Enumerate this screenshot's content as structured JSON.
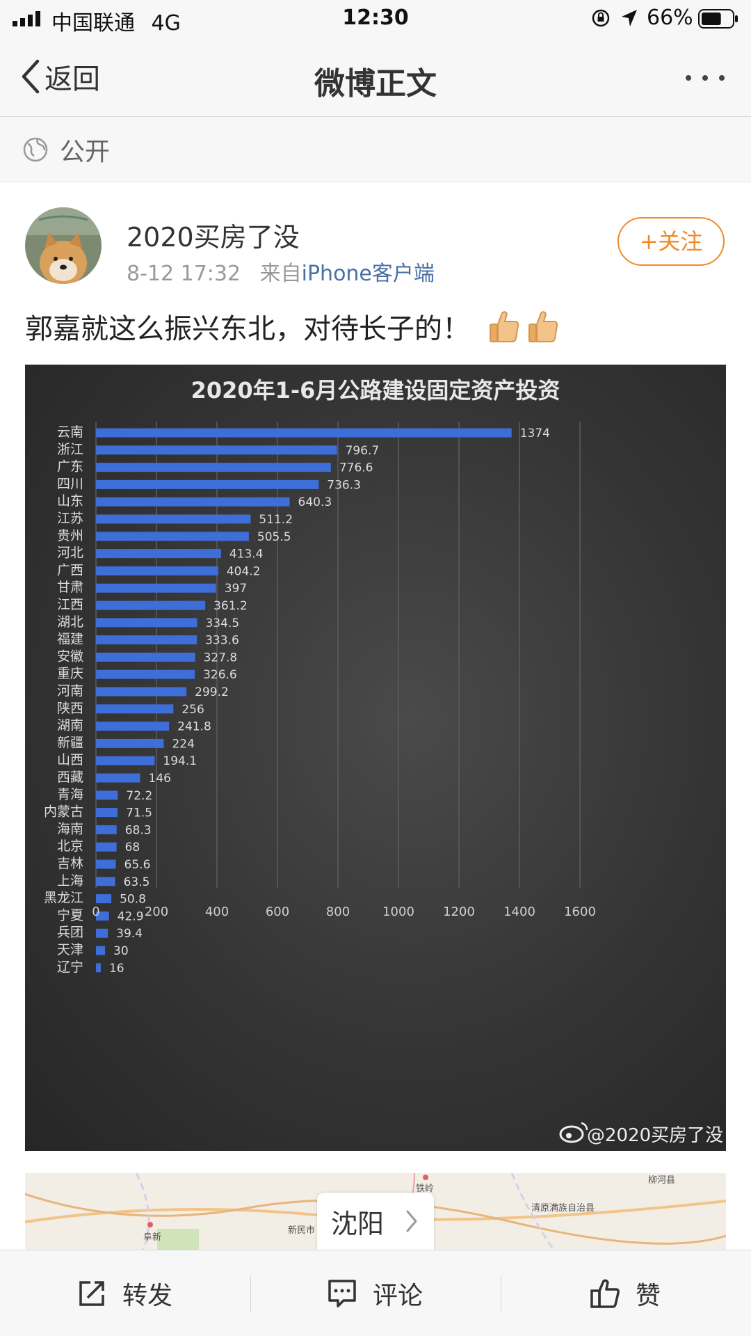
{
  "status_bar": {
    "carrier": "中国联通",
    "network": "4G",
    "time": "12:30",
    "battery_percent": "66%",
    "battery_level": 0.66
  },
  "nav": {
    "back_label": "返回",
    "title": "微博正文",
    "more_icon": "more-dots-icon"
  },
  "visibility": {
    "icon": "globe-icon",
    "label": "公开"
  },
  "post": {
    "username": "2020买房了没",
    "time": "8-12 17:32",
    "source_prefix": "来自",
    "source": "iPhone客户端",
    "follow_label": "+关注",
    "text": "郭嘉就这么振兴东北，对待长子的！",
    "emojis": [
      "thumbs-up-icon",
      "thumbs-up-icon"
    ]
  },
  "chart_data": {
    "type": "bar",
    "orientation": "horizontal",
    "title": "2020年1-6月公路建设固定资产投资",
    "categories": [
      "云南",
      "浙江",
      "广东",
      "四川",
      "山东",
      "江苏",
      "贵州",
      "河北",
      "广西",
      "甘肃",
      "江西",
      "湖北",
      "福建",
      "安徽",
      "重庆",
      "河南",
      "陕西",
      "湖南",
      "新疆",
      "山西",
      "西藏",
      "青海",
      "内蒙古",
      "海南",
      "北京",
      "吉林",
      "上海",
      "黑龙江",
      "宁夏",
      "兵团",
      "天津",
      "辽宁"
    ],
    "values": [
      1374,
      796.7,
      776.6,
      736.3,
      640.3,
      511.2,
      505.5,
      413.4,
      404.2,
      397,
      361.2,
      334.5,
      333.6,
      327.8,
      326.6,
      299.2,
      256,
      241.8,
      224,
      194.1,
      146,
      72.2,
      71.5,
      68.3,
      68,
      65.6,
      63.5,
      50.8,
      42.9,
      39.4,
      30,
      16
    ],
    "value_labels": [
      "1374",
      "796.7",
      "776.6",
      "736.3",
      "640.3",
      "511.2",
      "505.5",
      "413.4",
      "404.2",
      "397",
      "361.2",
      "334.5",
      "333.6",
      "327.8",
      "326.6",
      "299.2",
      "256",
      "241.8",
      "224",
      "194.1",
      "146",
      "72.2",
      "71.5",
      "68.3",
      "68",
      "65.6",
      "63.5",
      "50.8",
      "42.9",
      "39.4",
      "30",
      "16"
    ],
    "xticks": [
      "0",
      "200",
      "400",
      "600",
      "800",
      "1000",
      "1200",
      "1400",
      "1600"
    ],
    "xlim": [
      0,
      1600
    ],
    "grid": true,
    "bar_color": "#3e6fd8",
    "watermark": "@2020买房了没"
  },
  "map": {
    "city": "沈阳",
    "places": [
      "铁岭",
      "柳河县",
      "清原满族自治县",
      "阜新",
      "新民市"
    ]
  },
  "toolbar": {
    "repost_label": "转发",
    "comment_label": "评论",
    "like_label": "赞"
  }
}
